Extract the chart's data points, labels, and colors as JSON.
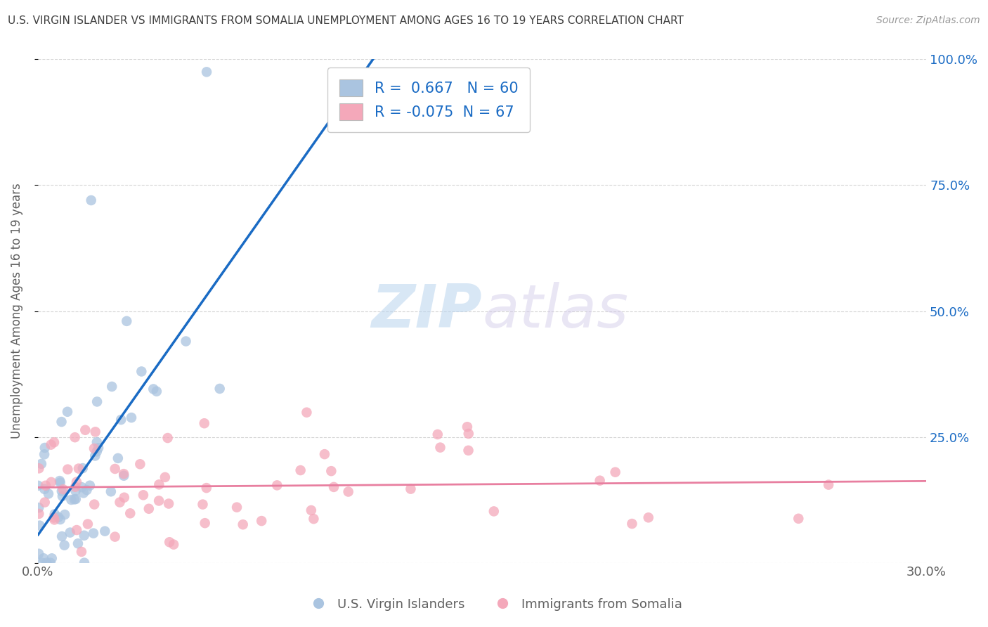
{
  "title": "U.S. VIRGIN ISLANDER VS IMMIGRANTS FROM SOMALIA UNEMPLOYMENT AMONG AGES 16 TO 19 YEARS CORRELATION CHART",
  "source": "Source: ZipAtlas.com",
  "ylabel": "Unemployment Among Ages 16 to 19 years",
  "xlim": [
    0.0,
    0.3
  ],
  "ylim": [
    0.0,
    1.0
  ],
  "yticks": [
    0.0,
    0.25,
    0.5,
    0.75,
    1.0
  ],
  "ytick_labels_right": [
    "",
    "25.0%",
    "50.0%",
    "75.0%",
    "100.0%"
  ],
  "blue_R": 0.667,
  "blue_N": 60,
  "pink_R": -0.075,
  "pink_N": 67,
  "blue_color": "#aac4e0",
  "pink_color": "#f4a8ba",
  "blue_line_color": "#1a6bc4",
  "pink_line_color": "#e87fa0",
  "legend_label_blue": "U.S. Virgin Islanders",
  "legend_label_pink": "Immigrants from Somalia",
  "watermark_zip": "ZIP",
  "watermark_atlas": "atlas",
  "background_color": "#ffffff",
  "grid_color": "#cccccc",
  "title_color": "#404040",
  "axis_label_color": "#606060",
  "tick_label_color": "#1a6bc4"
}
